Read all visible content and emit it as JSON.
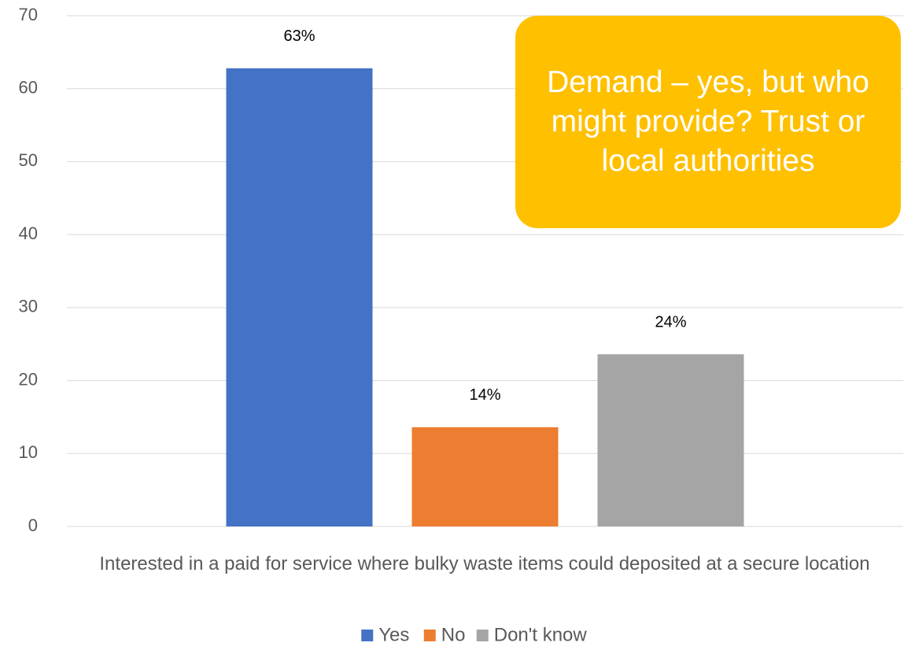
{
  "chart_data": {
    "type": "bar",
    "categories": [
      "Interested in a paid for service where bulky waste items could deposited at a secure location"
    ],
    "series": [
      {
        "name": "Yes",
        "color": "#4472c4",
        "values": [
          62.8
        ],
        "value_labels": [
          "63%"
        ]
      },
      {
        "name": "No",
        "color": "#ed7d31",
        "values": [
          13.6
        ],
        "value_labels": [
          "14%"
        ]
      },
      {
        "name": "Don't know",
        "color": "#a5a5a5",
        "values": [
          23.6
        ],
        "value_labels": [
          "24%"
        ]
      }
    ],
    "ylim": [
      0,
      70
    ],
    "yticks": [
      0,
      10,
      20,
      30,
      40,
      50,
      60,
      70
    ],
    "grid": true,
    "legend": "bottom",
    "annotation": "Demand – yes, but who might provide? Trust or local authorities"
  }
}
